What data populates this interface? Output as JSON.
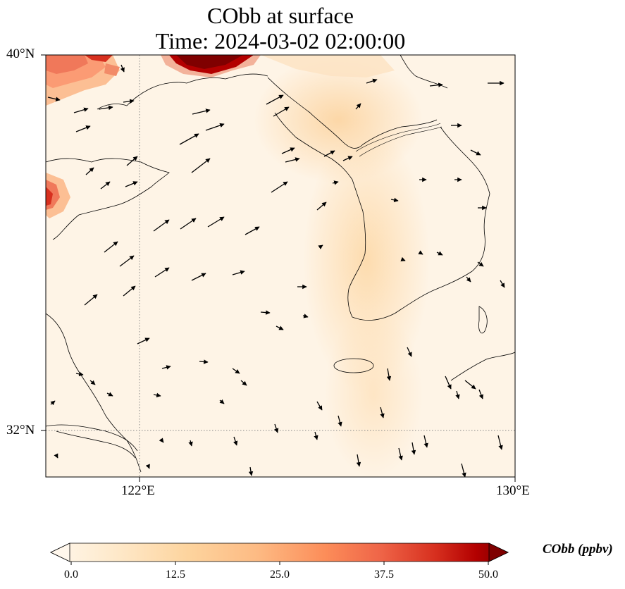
{
  "title": {
    "line1": "CObb at surface",
    "line2": "Time: 2024-03-02 02:00:00"
  },
  "map": {
    "variable": "CObb",
    "lon_range": [
      119,
      130
    ],
    "lat_range": [
      31,
      40
    ],
    "gridlines": {
      "lon": [
        122
      ],
      "lat": [
        32
      ],
      "style": "dotted",
      "color": "#888888"
    },
    "y_labels": [
      "40°N",
      "32°N"
    ],
    "x_labels": [
      "122°E",
      "130°E"
    ],
    "wind_vectors": "shown",
    "high_concentration_areas": [
      "north-west corner near 40°N",
      "west edge near 36.5°N"
    ]
  },
  "colorbar": {
    "title": "CObb (ppbv)",
    "colormap": "OrRd",
    "min": 0.0,
    "max": 50.0,
    "ticks": [
      "0.0",
      "12.5",
      "25.0",
      "37.5",
      "50.0"
    ],
    "extend": "both"
  },
  "colors": {
    "background": "#fff7ec",
    "low": "#fdebd2",
    "mid": "#fdca94",
    "high": "#ef6548",
    "max": "#7f0000",
    "coast": "#000000",
    "grid": "#888888"
  }
}
